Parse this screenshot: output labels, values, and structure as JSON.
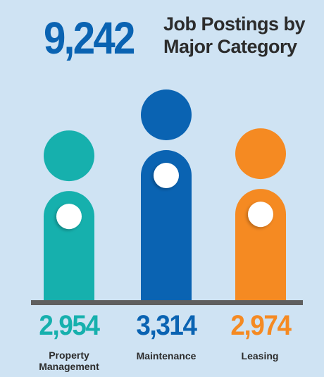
{
  "header": {
    "total": "9,242",
    "title_line1": "Job Postings by",
    "title_line2": "Major Category",
    "total_color": "#0a63b2"
  },
  "chart_data": {
    "type": "bar",
    "title": "Job Postings by Major Category",
    "categories": [
      "Property Management",
      "Maintenance",
      "Leasing"
    ],
    "values": [
      2954,
      3314,
      2974
    ],
    "value_labels": [
      "2,954",
      "3,314",
      "2,974"
    ],
    "category_lines": [
      [
        "Property",
        "Management"
      ],
      [
        "Maintenance"
      ],
      [
        "Leasing"
      ]
    ],
    "colors": [
      "#16b0ad",
      "#0a63b2",
      "#f58a22"
    ],
    "style": "pictograph-people"
  }
}
